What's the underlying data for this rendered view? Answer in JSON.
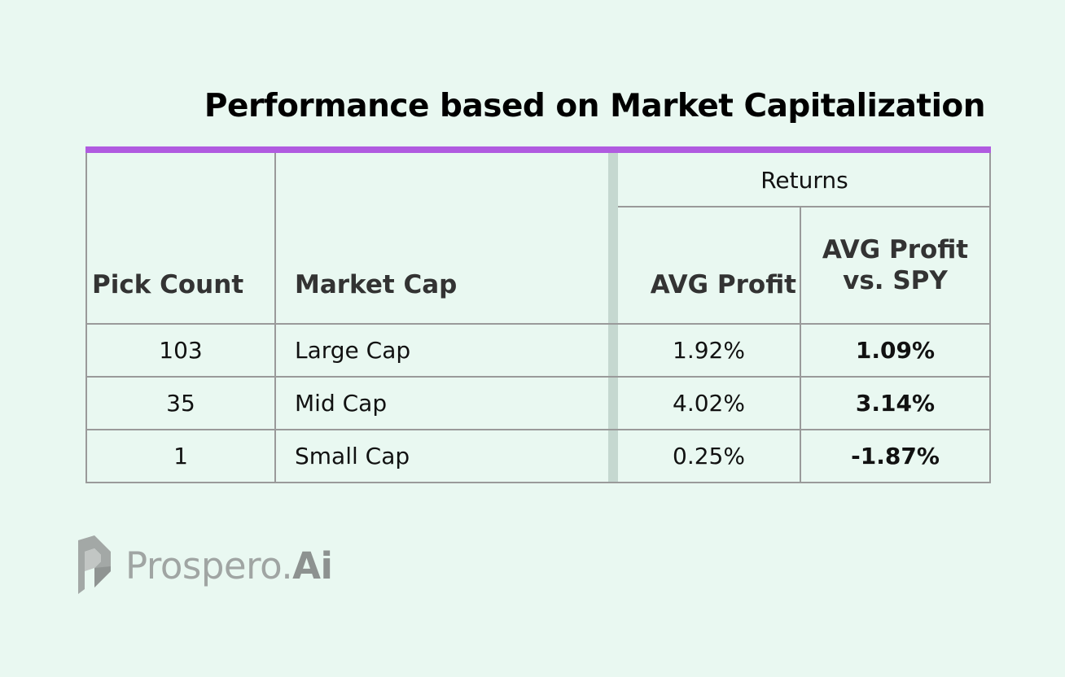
{
  "title": "Performance based on Market Capitalization",
  "colors": {
    "background": "#e9f8f1",
    "accent": "#b05be0",
    "border": "#9a9a9a",
    "separator": "#c5d8d0",
    "logo": "#a0a5a3"
  },
  "table": {
    "group_header": "Returns",
    "headers": {
      "pick_count": "Pick Count",
      "market_cap": "Market Cap",
      "avg_profit": "AVG Profit",
      "avg_profit_vs_spy_line1": "AVG Profit",
      "avg_profit_vs_spy_line2": "vs. SPY"
    },
    "rows": [
      {
        "pick_count": "103",
        "market_cap": "Large Cap",
        "avg_profit": "1.92%",
        "avg_profit_vs_spy": "1.09%"
      },
      {
        "pick_count": "35",
        "market_cap": "Mid Cap",
        "avg_profit": "4.02%",
        "avg_profit_vs_spy": "3.14%"
      },
      {
        "pick_count": "1",
        "market_cap": "Small Cap",
        "avg_profit": "0.25%",
        "avg_profit_vs_spy": "-1.87%"
      }
    ]
  },
  "logo": {
    "icon": "prospero-logo-icon",
    "name_part1": "Prospero.",
    "name_part2": "Ai"
  }
}
